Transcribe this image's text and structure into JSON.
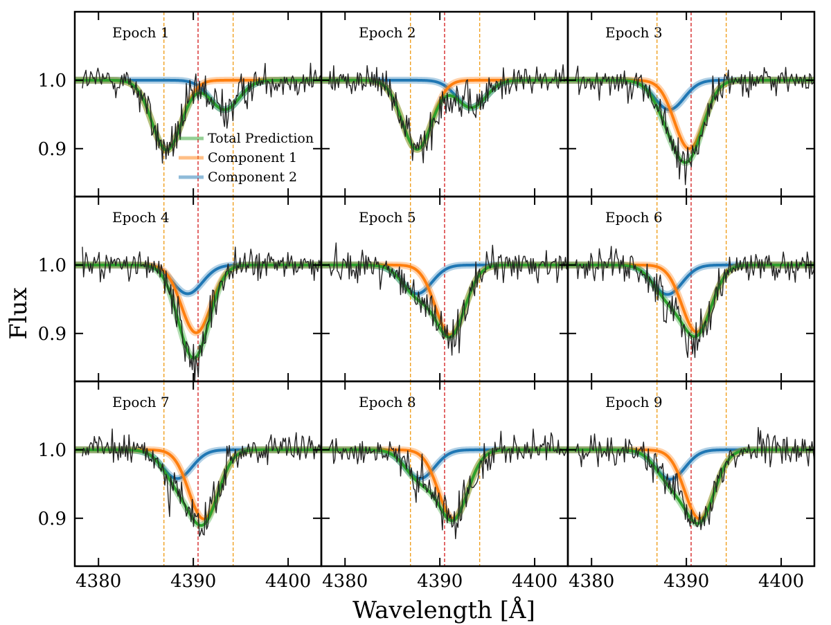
{
  "chart_data": {
    "type": "line",
    "layout": "3x3 grid of panels, shared axes",
    "xlabel": "Wavelength [Å]",
    "ylabel": "Flux",
    "xlim": [
      4377.5,
      4403.5
    ],
    "ylim": [
      0.83,
      1.1
    ],
    "x_ticks": [
      4380,
      4390,
      4400
    ],
    "x_tick_labels": [
      "4380",
      "4390",
      "4400"
    ],
    "y_ticks": [
      0.9,
      1.0
    ],
    "y_tick_labels": [
      "0.9",
      "1.0"
    ],
    "legend": {
      "position": "inside Epoch 1 panel, lower-middle",
      "entries": [
        {
          "label": "Total Prediction",
          "color": "#2ca02c"
        },
        {
          "label": "Component 1",
          "color": "#ff7f0e"
        },
        {
          "label": "Component 2",
          "color": "#1f77b4"
        }
      ]
    },
    "reference_lines": [
      {
        "x": 4390.5,
        "color": "#d62728",
        "style": "dashed"
      },
      {
        "x": 4386.9,
        "color": "#f0a020",
        "style": "dashed"
      },
      {
        "x": 4394.2,
        "color": "#f0a020",
        "style": "dashed"
      }
    ],
    "component_width_angstrom": 1.55,
    "series_colors": {
      "observed": "#222222",
      "total": "#2ca02c",
      "component1": "#ff7f0e",
      "component2": "#1f77b4",
      "red_line": "#d62728",
      "orange_line": "#f0a020"
    },
    "epochs": [
      {
        "label": "Epoch 1",
        "c1_center": 4387.2,
        "c1_depth": 0.102,
        "c2_center": 4393.3,
        "c2_depth": 0.043
      },
      {
        "label": "Epoch 2",
        "c1_center": 4387.6,
        "c1_depth": 0.101,
        "c2_center": 4393.3,
        "c2_depth": 0.04
      },
      {
        "label": "Epoch 3",
        "c1_center": 4390.3,
        "c1_depth": 0.1,
        "c2_center": 4388.2,
        "c2_depth": 0.043
      },
      {
        "label": "Epoch 4",
        "c1_center": 4390.3,
        "c1_depth": 0.099,
        "c2_center": 4389.4,
        "c2_depth": 0.042
      },
      {
        "label": "Epoch 5",
        "c1_center": 4391.1,
        "c1_depth": 0.102,
        "c2_center": 4387.6,
        "c2_depth": 0.042
      },
      {
        "label": "Epoch 6",
        "c1_center": 4391.1,
        "c1_depth": 0.098,
        "c2_center": 4388.0,
        "c2_depth": 0.043
      },
      {
        "label": "Epoch 7",
        "c1_center": 4391.1,
        "c1_depth": 0.101,
        "c2_center": 4388.3,
        "c2_depth": 0.042
      },
      {
        "label": "Epoch 8",
        "c1_center": 4391.4,
        "c1_depth": 0.1,
        "c2_center": 4387.9,
        "c2_depth": 0.042
      },
      {
        "label": "Epoch 9",
        "c1_center": 4391.4,
        "c1_depth": 0.101,
        "c2_center": 4388.3,
        "c2_depth": 0.043
      }
    ]
  }
}
